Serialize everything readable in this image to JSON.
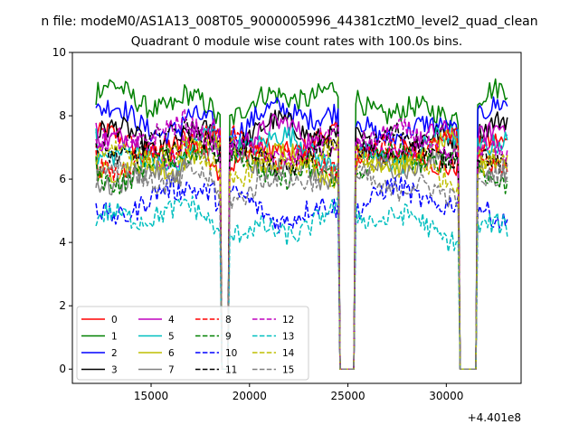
{
  "chart_data": {
    "type": "line",
    "suptitle": "n file: modeM0/AS1A13_008T05_9000005996_44381cztM0_level2_quad_clean",
    "title": "Quadrant 0 module wise count rates with 100.0s bins.",
    "xlabel": "",
    "ylabel": "",
    "x_offset_label": "+4.401e8",
    "xlim": [
      11000,
      33800
    ],
    "ylim": [
      -0.45,
      10
    ],
    "xticks": [
      15000,
      20000,
      25000,
      30000
    ],
    "yticks": [
      0,
      2,
      4,
      6,
      8,
      10
    ],
    "grid": false,
    "legend_location": "lower-left",
    "legend_columns": 4,
    "x_start": 12200,
    "x_end": 33100,
    "bin_size": 100,
    "segments": [
      {
        "start": 12200,
        "end": 18500
      },
      {
        "start": 19000,
        "end": 24500
      },
      {
        "start": 25400,
        "end": 30600
      },
      {
        "start": 31600,
        "end": 33100
      }
    ],
    "gaps": [
      {
        "start": 18600,
        "end": 18900
      },
      {
        "start": 24700,
        "end": 25200
      },
      {
        "start": 30800,
        "end": 31400
      }
    ],
    "series": [
      {
        "name": "0",
        "color": "#ff0000",
        "dash": "solid",
        "level": 6.9
      },
      {
        "name": "1",
        "color": "#008000",
        "dash": "solid",
        "level": 8.4
      },
      {
        "name": "2",
        "color": "#0000ff",
        "dash": "solid",
        "level": 7.8
      },
      {
        "name": "3",
        "color": "#000000",
        "dash": "solid",
        "level": 7.3
      },
      {
        "name": "4",
        "color": "#bf00bf",
        "dash": "solid",
        "level": 7.2
      },
      {
        "name": "5",
        "color": "#00bfbf",
        "dash": "solid",
        "level": 6.9
      },
      {
        "name": "6",
        "color": "#bfbf00",
        "dash": "solid",
        "level": 6.6
      },
      {
        "name": "7",
        "color": "#808080",
        "dash": "solid",
        "level": 6.3
      },
      {
        "name": "8",
        "color": "#ff0000",
        "dash": "dashed",
        "level": 6.8
      },
      {
        "name": "9",
        "color": "#008000",
        "dash": "dashed",
        "level": 6.4
      },
      {
        "name": "10",
        "color": "#0000ff",
        "dash": "dashed",
        "level": 5.2
      },
      {
        "name": "11",
        "color": "#000000",
        "dash": "dashed",
        "level": 6.9
      },
      {
        "name": "12",
        "color": "#bf00bf",
        "dash": "dashed",
        "level": 7.1
      },
      {
        "name": "13",
        "color": "#00bfbf",
        "dash": "dashed",
        "level": 4.6
      },
      {
        "name": "14",
        "color": "#bfbf00",
        "dash": "dashed",
        "level": 6.5
      },
      {
        "name": "15",
        "color": "#808080",
        "dash": "dashed",
        "level": 5.9
      }
    ]
  }
}
